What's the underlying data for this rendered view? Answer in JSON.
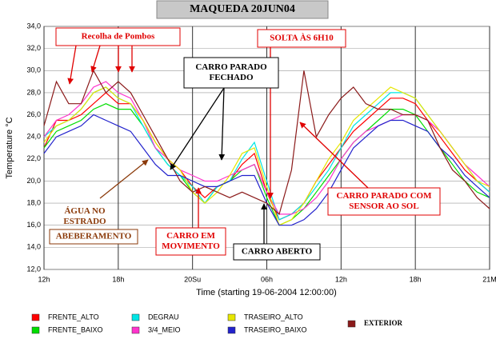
{
  "chart_data": {
    "type": "line",
    "title": "MAQUEDA 20JUN04",
    "ylabel": "Temperature °C",
    "xlabel": "Time (starting 19-06-2004 12:00:00)",
    "x": [
      0,
      1,
      2,
      3,
      4,
      5,
      6,
      7,
      8,
      9,
      10,
      11,
      12,
      13,
      14,
      15,
      16,
      17,
      18,
      19,
      20,
      21,
      22,
      23,
      24,
      25,
      26,
      27,
      28,
      29,
      30,
      31,
      32,
      33,
      34,
      35,
      36
    ],
    "xlim": [
      0,
      36
    ],
    "xticks": [
      {
        "value": 0,
        "label": "12h"
      },
      {
        "value": 6,
        "label": "18h"
      },
      {
        "value": 12,
        "label": "20Su"
      },
      {
        "value": 18,
        "label": "06h"
      },
      {
        "value": 24,
        "label": "12h"
      },
      {
        "value": 30,
        "label": "18h"
      },
      {
        "value": 36,
        "label": "21M"
      }
    ],
    "ylim": [
      12,
      34
    ],
    "yticks": [
      {
        "value": 12,
        "label": "12,0"
      },
      {
        "value": 14,
        "label": "14,0"
      },
      {
        "value": 16,
        "label": "16,0"
      },
      {
        "value": 18,
        "label": "18,0"
      },
      {
        "value": 20,
        "label": "20,0"
      },
      {
        "value": 22,
        "label": "22,0"
      },
      {
        "value": 24,
        "label": "24,0"
      },
      {
        "value": 26,
        "label": "26,0"
      },
      {
        "value": 28,
        "label": "28,0"
      },
      {
        "value": 30,
        "label": "30,0"
      },
      {
        "value": 32,
        "label": "32,0"
      },
      {
        "value": 34,
        "label": "34,0"
      }
    ],
    "grid": true,
    "series": [
      {
        "name": "FRENTE_ALTO",
        "color": "#ff0000",
        "values": [
          23,
          25.5,
          25.5,
          26,
          27,
          28,
          27,
          27,
          25.5,
          23.5,
          22,
          21,
          19.5,
          18.5,
          19.5,
          20,
          21.5,
          22.5,
          19,
          16.5,
          17,
          18,
          20,
          21.5,
          23,
          24.5,
          25.5,
          26.5,
          27.5,
          27.5,
          27,
          25.5,
          24,
          22.5,
          21,
          20,
          19
        ]
      },
      {
        "name": "FRENTE_BAIXO",
        "color": "#00dd00",
        "values": [
          23,
          24.5,
          25,
          25.5,
          26.5,
          27,
          26.5,
          26.5,
          25,
          23,
          21.5,
          20.5,
          19,
          18,
          19.5,
          20,
          21,
          21.5,
          18.5,
          16,
          16.5,
          17.5,
          19,
          20.5,
          22,
          23.5,
          24.5,
          25.5,
          26.5,
          26.5,
          26,
          24.5,
          23,
          21.5,
          20,
          19,
          18.5
        ]
      },
      {
        "name": "DEGRAU",
        "color": "#00e5e5",
        "values": [
          24,
          25,
          25.5,
          26.5,
          28,
          28.5,
          27.5,
          27,
          25,
          23,
          21.5,
          20.5,
          19.5,
          18,
          19.5,
          20,
          22,
          23.5,
          20,
          16.5,
          17,
          18,
          19.5,
          21,
          23,
          25,
          26,
          27,
          28,
          28,
          27.5,
          26,
          24.5,
          23,
          21.5,
          20,
          19
        ]
      },
      {
        "name": "3/4_MEIO",
        "color": "#ff33cc",
        "values": [
          24,
          25.5,
          26,
          27,
          28.5,
          29,
          28,
          27.5,
          25.5,
          23,
          22,
          21,
          20.5,
          20,
          20,
          20.5,
          21,
          21.5,
          19,
          17,
          17,
          17.5,
          18.5,
          20,
          22,
          23.5,
          24.5,
          25,
          25.5,
          26,
          26,
          25.5,
          24.5,
          23,
          21.5,
          20.5,
          19.5
        ]
      },
      {
        "name": "TRASEIRO_ALTO",
        "color": "#e6e600",
        "values": [
          23.5,
          25,
          25.5,
          26.5,
          28,
          28.5,
          27.5,
          27,
          25.5,
          23.5,
          22,
          21,
          19,
          18,
          19,
          20.5,
          22.5,
          23,
          19.5,
          16,
          16.5,
          18,
          20,
          22,
          23.5,
          25.5,
          26.5,
          27.5,
          28.5,
          28,
          27.5,
          26,
          24.5,
          23,
          21.5,
          20,
          19.5
        ]
      },
      {
        "name": "TRASEIRO_BAIXO",
        "color": "#2222cc",
        "values": [
          22.5,
          24,
          24.5,
          25,
          26,
          25.5,
          25,
          24.5,
          23,
          21.5,
          20.5,
          20.5,
          20,
          19.5,
          19.5,
          20,
          20.5,
          20.5,
          18,
          16,
          16,
          16.5,
          17.5,
          19,
          21,
          23,
          24,
          25,
          25.5,
          25.5,
          25,
          24.5,
          23,
          22,
          20.5,
          19.5,
          18.5
        ]
      },
      {
        "name": "EXTERIOR",
        "color": "#8b1a1a",
        "values": [
          25,
          29,
          27,
          27,
          30,
          28,
          29,
          28,
          26,
          24,
          22,
          20,
          19,
          19.5,
          19,
          18.5,
          19,
          18.5,
          18,
          17,
          21,
          30,
          24,
          26,
          27.5,
          28.5,
          27,
          26.5,
          26.5,
          26,
          26,
          25.5,
          23,
          21,
          20,
          18.5,
          17.5
        ]
      }
    ],
    "annotations": [
      {
        "lines": [
          "Recolha de Pombos"
        ]
      },
      {
        "lines": [
          "SOLTA ÀS 6H10"
        ]
      },
      {
        "lines": [
          "CARRO  PARADO",
          "FECHADO"
        ]
      },
      {
        "lines": [
          "ÁGUA NO",
          "ESTRADO"
        ]
      },
      {
        "lines": [
          "ABEBERAMENTO"
        ]
      },
      {
        "lines": [
          "CARRO EM",
          "MOVIMENTO"
        ]
      },
      {
        "lines": [
          "CARRO  ABERTO"
        ]
      },
      {
        "lines": [
          "CARRO PARADO COM",
          "SENSOR AO SOL"
        ]
      }
    ]
  }
}
